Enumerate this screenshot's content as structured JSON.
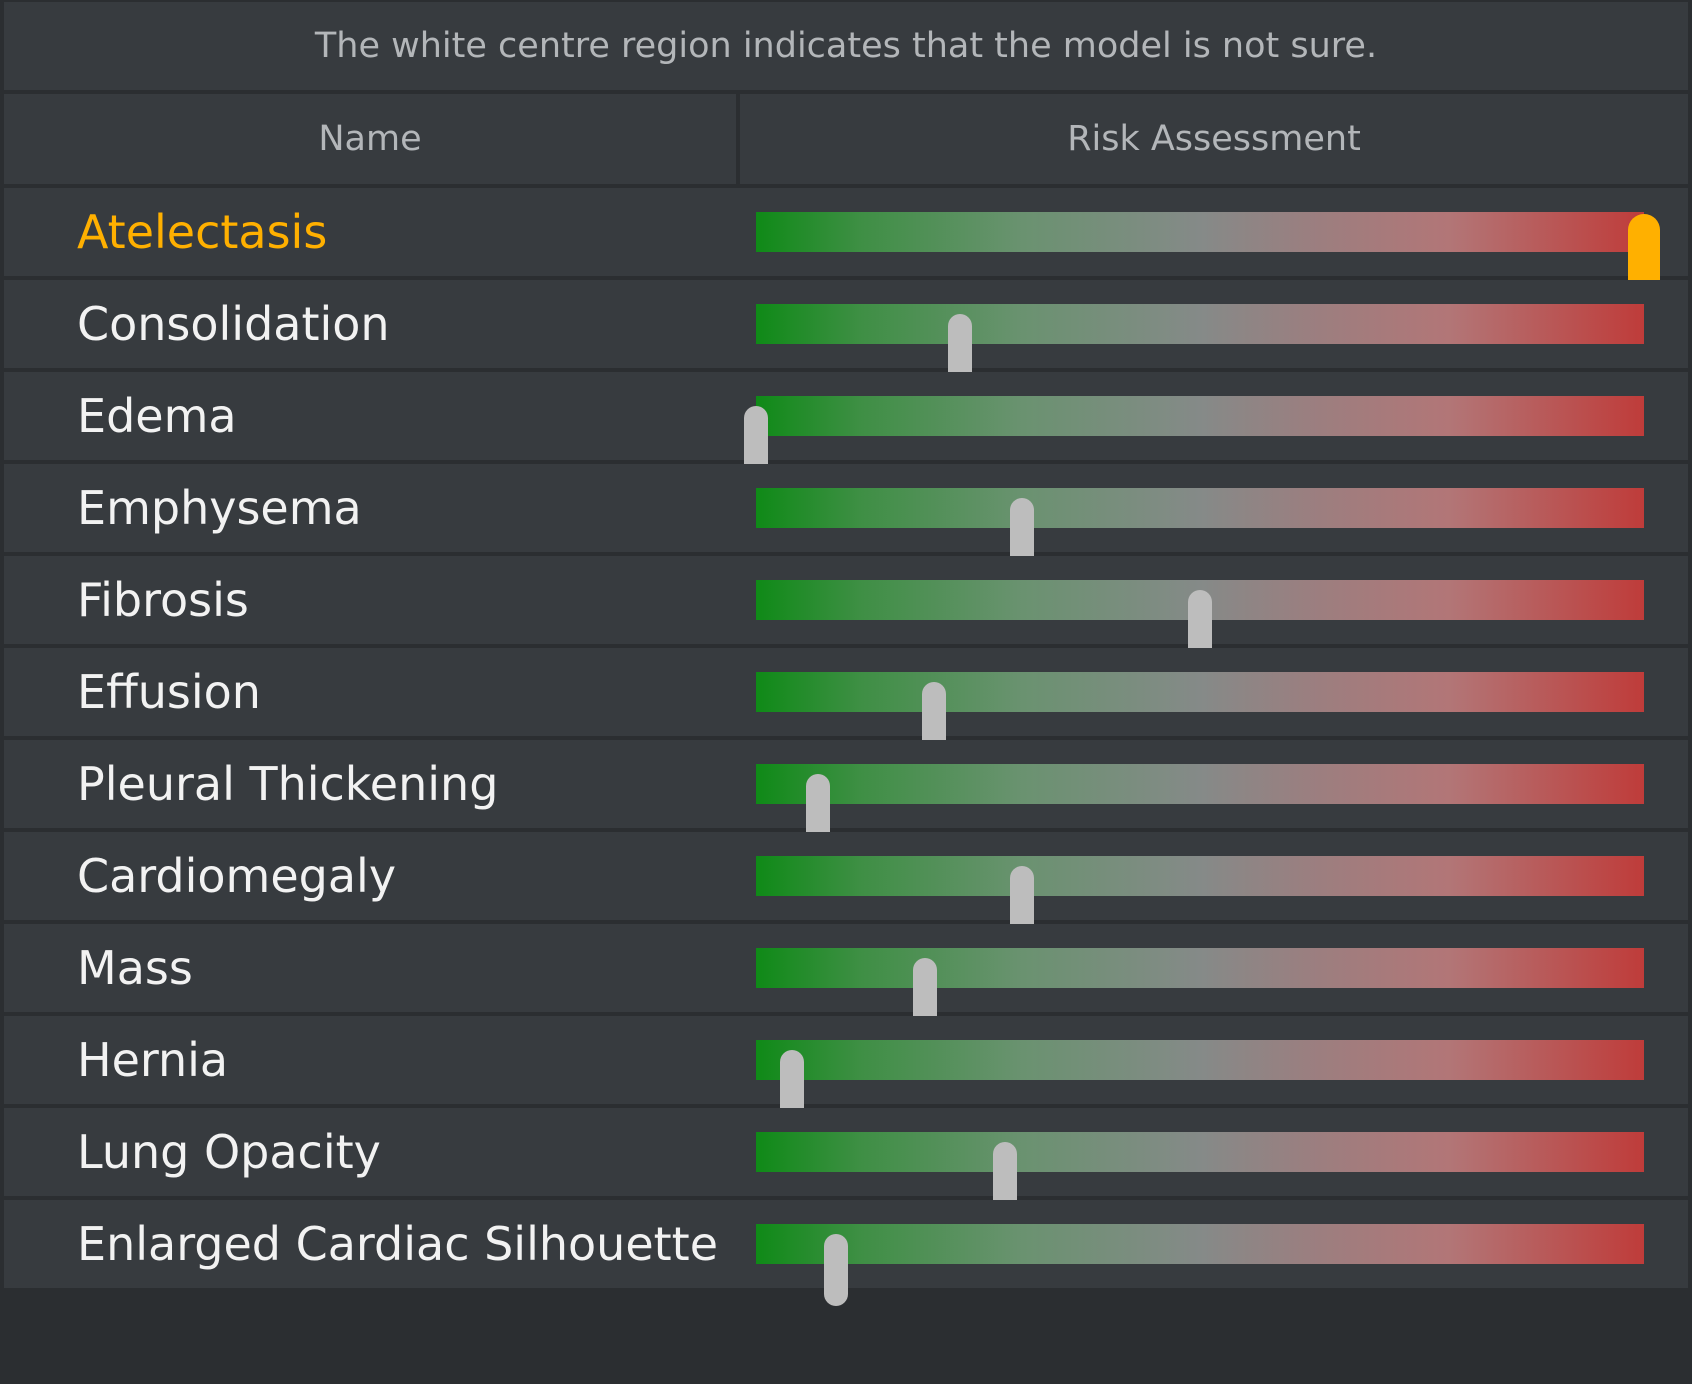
{
  "notice": "The white centre region indicates that the model is not sure.",
  "columns": {
    "name": "Name",
    "risk": "Risk Assessment"
  },
  "rows": [
    {
      "name": "Atelectasis",
      "risk": 1.0,
      "selected": true
    },
    {
      "name": "Consolidation",
      "risk": 0.23,
      "selected": false
    },
    {
      "name": "Edema",
      "risk": 0.0,
      "selected": false
    },
    {
      "name": "Emphysema",
      "risk": 0.3,
      "selected": false
    },
    {
      "name": "Fibrosis",
      "risk": 0.5,
      "selected": false
    },
    {
      "name": "Effusion",
      "risk": 0.2,
      "selected": false
    },
    {
      "name": "Pleural Thickening",
      "risk": 0.07,
      "selected": false
    },
    {
      "name": "Cardiomegaly",
      "risk": 0.3,
      "selected": false
    },
    {
      "name": "Mass",
      "risk": 0.19,
      "selected": false
    },
    {
      "name": "Hernia",
      "risk": 0.04,
      "selected": false
    },
    {
      "name": "Lung Opacity",
      "risk": 0.28,
      "selected": false
    },
    {
      "name": "Enlarged Cardiac Silhouette",
      "risk": 0.09,
      "selected": false
    }
  ],
  "colors": {
    "selected_text": "#ffb000",
    "low_risk": "#0f8a17",
    "uncertain": "#858a88",
    "high_risk": "#bf3c3a",
    "handle": "#bdbdbd"
  }
}
